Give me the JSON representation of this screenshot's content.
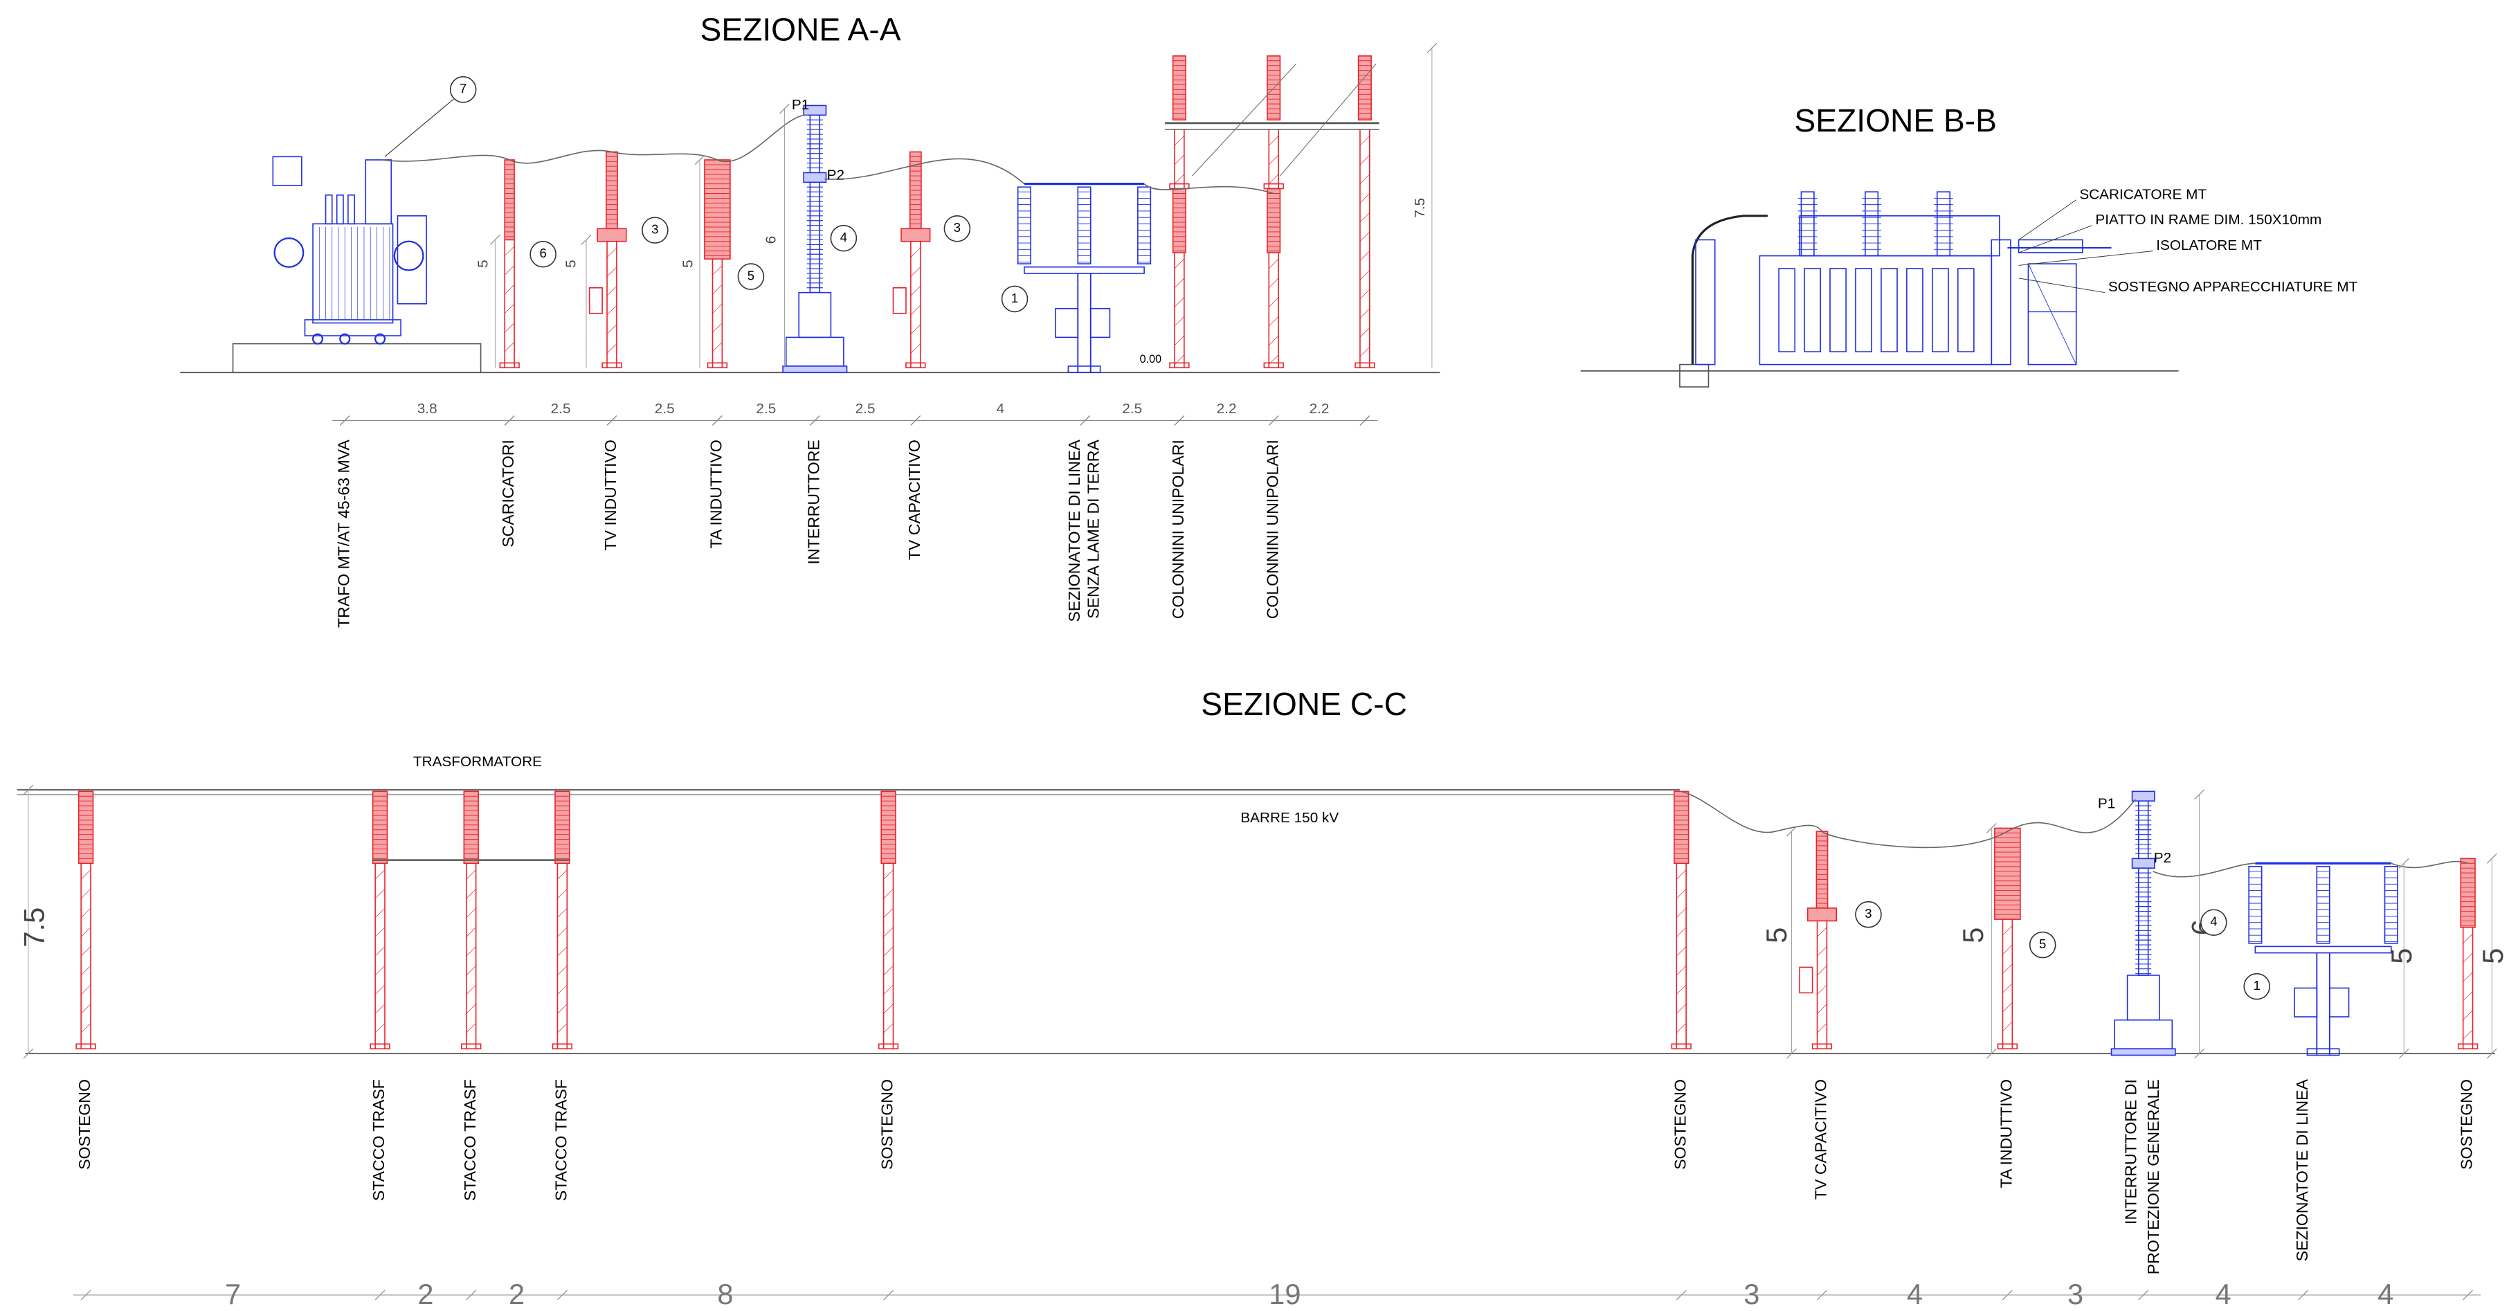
{
  "section_aa": {
    "title": "SEZIONE A-A",
    "equipment": [
      "TRAFO MT/AT 45-63 MVA",
      "SCARICATORI",
      "TV INDUTTIVO",
      "TA INDUTTIVO",
      "INTERRUTTORE",
      "TV CAPACITIVO",
      [
        "SEZIONATOTE DI LINEA",
        "SENZA LAME DI TERRA"
      ],
      "COLONNINI UNIPOLARI",
      "COLONNINI UNIPOLARI"
    ],
    "spacings": [
      "3.8",
      "2.5",
      "2.5",
      "2.5",
      "2.5",
      "4",
      "2.5",
      "2.2",
      "2.2"
    ],
    "callouts": [
      "7",
      "6",
      "3",
      "5",
      "4",
      "3",
      "1"
    ],
    "heights": [
      "5",
      "5",
      "5",
      "6",
      "7.5"
    ],
    "points": [
      "P1",
      "P2"
    ],
    "level": "0.00"
  },
  "section_bb": {
    "title": "SEZIONE B-B",
    "notes": [
      "SCARICATORE MT",
      "PIATTO IN RAME DIM. 150X10mm",
      "ISOLATORE MT",
      "SOSTEGNO APPARECCHIATURE MT"
    ]
  },
  "section_cc": {
    "title": "SEZIONE C-C",
    "transformer": "TRASFORMATORE",
    "busbar": "BARRE 150 kV",
    "equipment": [
      "SOSTEGNO",
      "STACCO TRASF",
      "STACCO TRASF",
      "STACCO TRASF",
      "SOSTEGNO",
      "SOSTEGNO",
      "TV CAPACITIVO",
      "TA INDUTTIVO",
      [
        "INTERRUTTORE DI",
        "PROTEZIONE GENERALE"
      ],
      "SEZIONATOTE DI LINEA",
      "SOSTEGNO"
    ],
    "spacings": [
      "7",
      "2",
      "2",
      "8",
      "19",
      "3",
      "4",
      "3",
      "4",
      "4"
    ],
    "callouts": [
      "3",
      "5",
      "4",
      "1"
    ],
    "heights": [
      "7.5",
      "5",
      "5",
      "6",
      "5",
      "5"
    ],
    "points": [
      "P1",
      "P2"
    ]
  }
}
